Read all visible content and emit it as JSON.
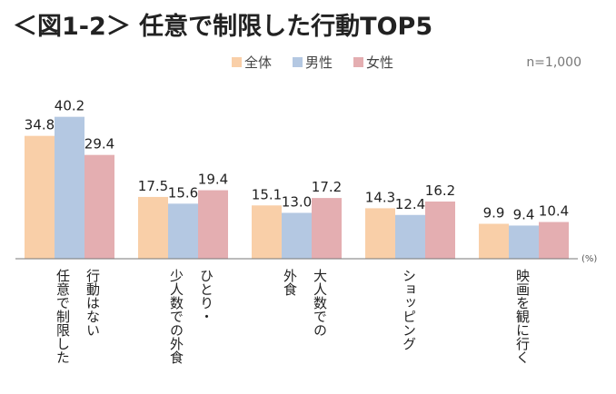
{
  "chart_data": {
    "type": "bar",
    "title": "＜図1-2＞ 任意で制限した行動TOP5",
    "sample_note": "n=1,000",
    "unit_label": "(%)",
    "categories": [
      [
        "行動はない",
        "任意で制限した"
      ],
      [
        "ひとり・",
        "少人数での外食"
      ],
      [
        "大人数での",
        "外食"
      ],
      [
        "ショッピング"
      ],
      [
        "映画を観に行く"
      ]
    ],
    "series": [
      {
        "name": "全体",
        "color": "#f9cfa8",
        "values": [
          34.8,
          17.5,
          15.1,
          14.3,
          9.9
        ]
      },
      {
        "name": "男性",
        "color": "#b4c8e2",
        "values": [
          40.2,
          15.6,
          13.0,
          12.4,
          9.4
        ]
      },
      {
        "name": "女性",
        "color": "#e4aeb1",
        "values": [
          29.4,
          19.4,
          17.2,
          16.2,
          10.4
        ]
      }
    ],
    "ylim": [
      0,
      45
    ],
    "grid": false,
    "legend": "top-center"
  }
}
